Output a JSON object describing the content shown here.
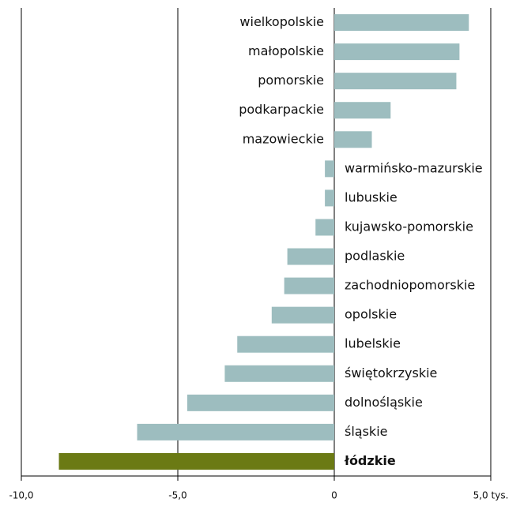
{
  "chart_data": {
    "type": "bar",
    "orientation": "horizontal",
    "categories": [
      "wielkopolskie",
      "małopolskie",
      "pomorskie",
      "podkarpackie",
      "mazowieckie",
      "warmińsko-mazurskie",
      "lubuskie",
      "kujawsko-pomorskie",
      "podlaskie",
      "zachodniopomorskie",
      "opolskie",
      "lubelskie",
      "świętokrzyskie",
      "dolnośląskie",
      "śląskie",
      "łódzkie"
    ],
    "values": [
      4.3,
      4.0,
      3.9,
      1.8,
      1.2,
      -0.3,
      -0.3,
      -0.6,
      -1.5,
      -1.6,
      -2.0,
      -3.1,
      -3.5,
      -4.7,
      -6.3,
      -8.8
    ],
    "color": "#9dbdbf",
    "highlight_color": "#6b7a14",
    "highlight_index": 15,
    "xlim": [
      -10,
      5
    ],
    "xticks": [
      {
        "value": -10,
        "label": "-10,0"
      },
      {
        "value": -5,
        "label": "-5,0"
      },
      0,
      {
        "value": 5,
        "label": "5,0 tys."
      }
    ],
    "grid": true
  }
}
